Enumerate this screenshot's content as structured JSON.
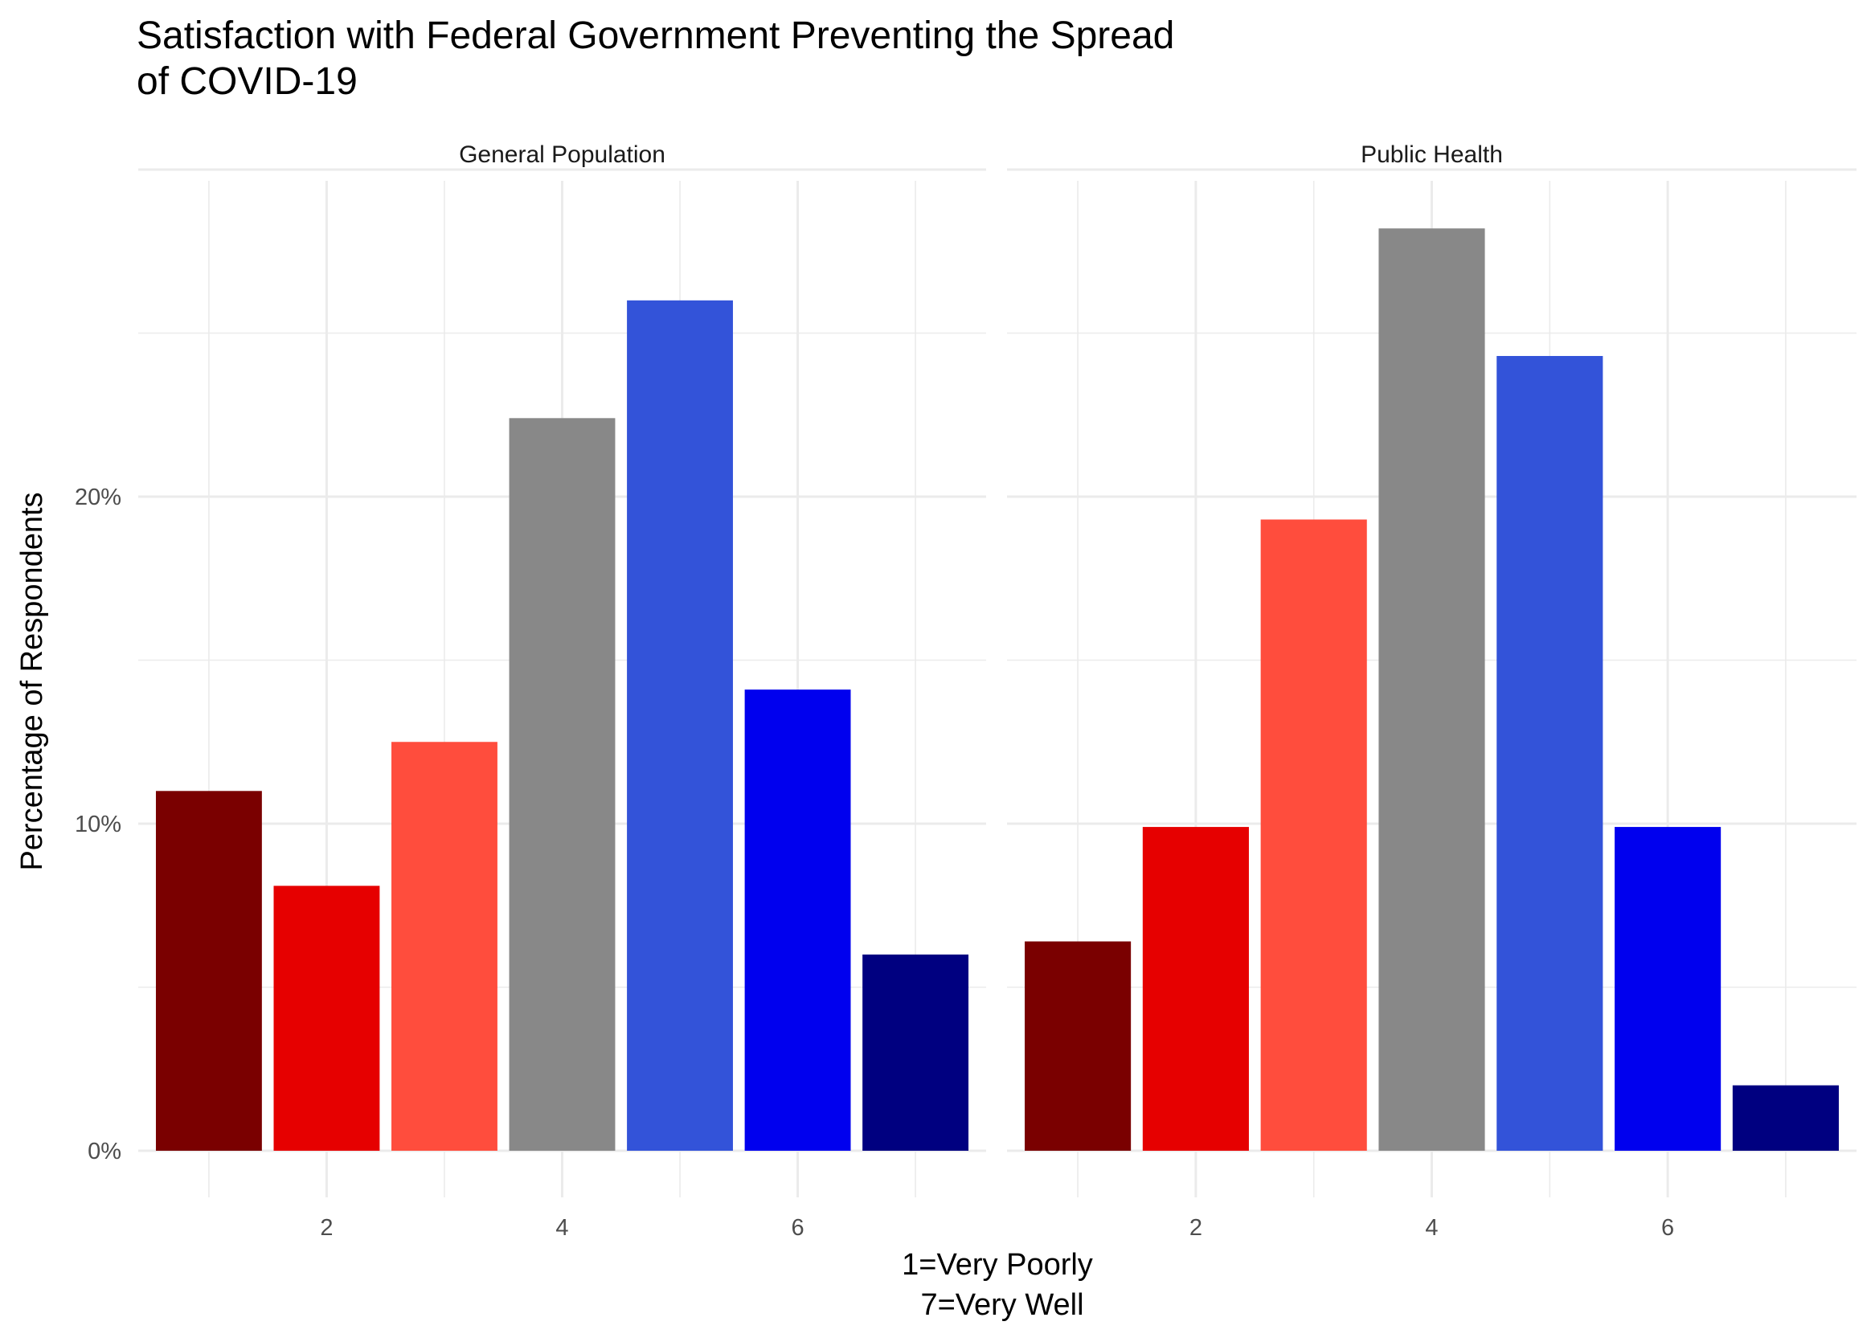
{
  "chart_data": {
    "type": "bar",
    "title_lines": [
      "Satisfaction with Federal Government Preventing the Spread",
      "of COVID-19"
    ],
    "xlabel_lines": [
      "1=Very Poorly",
      "7=Very Well"
    ],
    "ylabel": "Percentage of Respondents",
    "categories": [
      1,
      2,
      3,
      4,
      5,
      6,
      7
    ],
    "x_ticks": [
      2,
      4,
      6
    ],
    "y_ticks": [
      0,
      10,
      20
    ],
    "y_tick_labels": [
      "0%",
      "10%",
      "20%"
    ],
    "ylim": [
      0,
      30
    ],
    "xlim": [
      0.4,
      7.6
    ],
    "bar_colors": [
      "#7a0000",
      "#e60000",
      "#ff4d3d",
      "#888888",
      "#3353d9",
      "#0000ee",
      "#000080"
    ],
    "panels": [
      {
        "name": "General Population",
        "values": [
          11.0,
          8.1,
          12.5,
          22.4,
          26.0,
          14.1,
          6.0
        ]
      },
      {
        "name": "Public Health",
        "values": [
          6.4,
          9.9,
          19.3,
          28.2,
          24.3,
          9.9,
          2.0
        ]
      }
    ]
  }
}
